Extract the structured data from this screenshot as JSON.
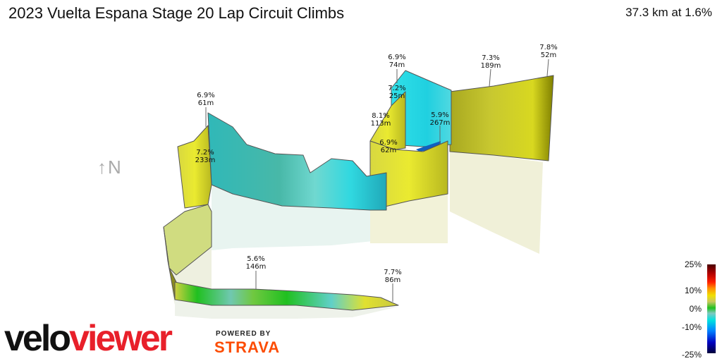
{
  "header": {
    "title": "2023 Vuelta Espana Stage 20 Lap Circuit Climbs",
    "summary": "37.3 km at 1.6%"
  },
  "compass": {
    "label": "↑N",
    "icon": "north-arrow-icon"
  },
  "chart_data": {
    "type": "3d-elevation-profile",
    "title": "2023 Vuelta Espana Stage 20 Lap Circuit Climbs",
    "distance_km": 37.3,
    "avg_gradient_pct": 1.6,
    "climbs": [
      {
        "gradient": "6.9%",
        "length": "61m"
      },
      {
        "gradient": "7.2%",
        "length": "233m"
      },
      {
        "gradient": "6.9%",
        "length": "74m"
      },
      {
        "gradient": "7.2%",
        "length": "25m"
      },
      {
        "gradient": "8.1%",
        "length": "113m"
      },
      {
        "gradient": "6.9%",
        "length": "62m"
      },
      {
        "gradient": "5.9%",
        "length": "267m"
      },
      {
        "gradient": "7.3%",
        "length": "189m"
      },
      {
        "gradient": "7.8%",
        "length": "52m"
      },
      {
        "gradient": "5.6%",
        "length": "146m"
      },
      {
        "gradient": "7.7%",
        "length": "86m"
      }
    ],
    "legend": {
      "title": "",
      "ticks": [
        "25%",
        "10%",
        "0%",
        "-10%",
        "-25%"
      ],
      "colors": [
        "#4a0000",
        "#ff2000",
        "#f0e000",
        "#20c020",
        "#00e0e0",
        "#0000c0",
        "#00003a"
      ]
    }
  },
  "branding": {
    "logo_velo": "velo",
    "logo_viewer": "viewer",
    "powered_by": "POWERED BY",
    "strava": "STRAVA"
  }
}
